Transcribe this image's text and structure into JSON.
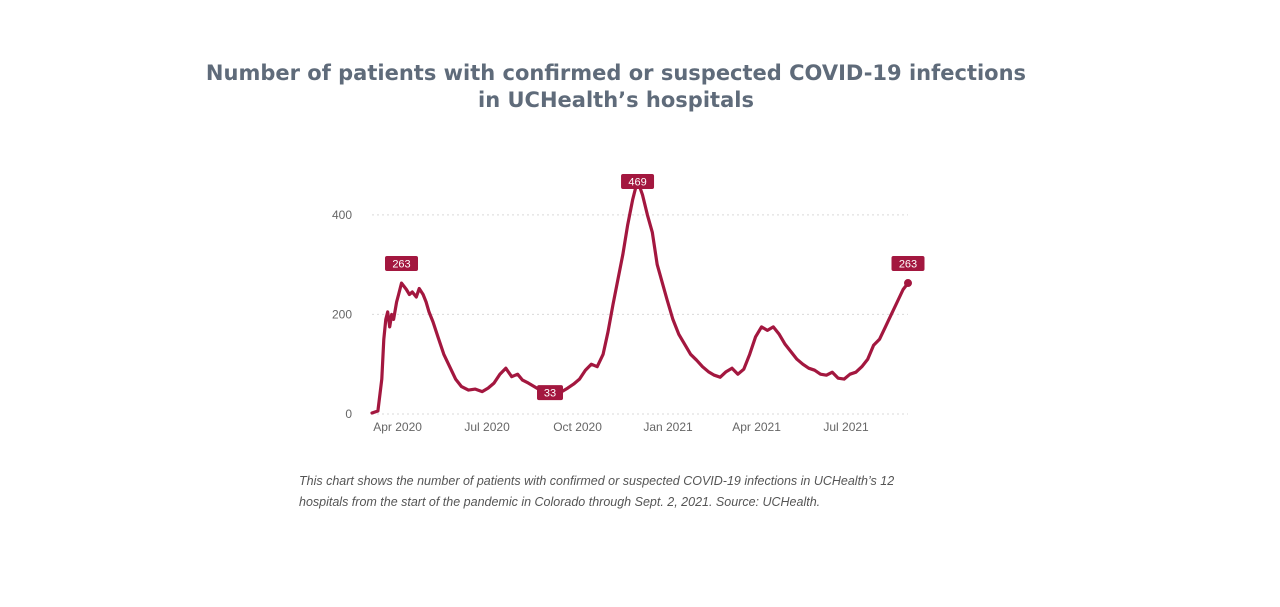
{
  "page": {
    "title": "Number of patients with confirmed or suspected COVID-19 infections in UCHealth’s hospitals",
    "caption": "This chart shows the number of patients with confirmed or suspected COVID-19 infections in UCHealth’s 12 hospitals from the start of the pandemic in Colorado through Sept. 2, 2021. Source: UCHealth."
  },
  "chart_data": {
    "type": "line",
    "title": "Number of patients with confirmed or suspected COVID-19 infections in UCHealth’s hospitals",
    "xlabel": "",
    "ylabel": "",
    "x_axis": {
      "range": [
        "2020-03-06",
        "2021-09-02"
      ],
      "ticks": [
        {
          "date": "2020-04-01",
          "label": "Apr 2020"
        },
        {
          "date": "2020-07-01",
          "label": "Jul 2020"
        },
        {
          "date": "2020-10-01",
          "label": "Oct 2020"
        },
        {
          "date": "2021-01-01",
          "label": "Jan 2021"
        },
        {
          "date": "2021-04-01",
          "label": "Apr 2021"
        },
        {
          "date": "2021-07-01",
          "label": "Jul 2021"
        }
      ]
    },
    "y_axis": {
      "range": [
        0,
        470
      ],
      "ticks": [
        0,
        200,
        400
      ]
    },
    "grid": "horizontal dotted",
    "line_color": "#a3173f",
    "series": [
      {
        "x": [
          "2020-03-06",
          "2020-03-12",
          "2020-03-16",
          "2020-03-18",
          "2020-03-20",
          "2020-03-22",
          "2020-03-24",
          "2020-03-26",
          "2020-03-28",
          "2020-03-31",
          "2020-04-02",
          "2020-04-05",
          "2020-04-08",
          "2020-04-10",
          "2020-04-13",
          "2020-04-16",
          "2020-04-20",
          "2020-04-23",
          "2020-04-27",
          "2020-04-30",
          "2020-05-03",
          "2020-05-07",
          "2020-05-12",
          "2020-05-18",
          "2020-05-24",
          "2020-05-30",
          "2020-06-05",
          "2020-06-12",
          "2020-06-19",
          "2020-06-26",
          "2020-07-02",
          "2020-07-08",
          "2020-07-14",
          "2020-07-20",
          "2020-07-26",
          "2020-08-01",
          "2020-08-06",
          "2020-08-12",
          "2020-08-18",
          "2020-08-24",
          "2020-08-29",
          "2020-09-03",
          "2020-09-09",
          "2020-09-15",
          "2020-09-21",
          "2020-09-27",
          "2020-10-03",
          "2020-10-09",
          "2020-10-15",
          "2020-10-21",
          "2020-10-27",
          "2020-11-01",
          "2020-11-06",
          "2020-11-11",
          "2020-11-16",
          "2020-11-21",
          "2020-11-26",
          "2020-12-01",
          "2020-12-06",
          "2020-12-11",
          "2020-12-16",
          "2020-12-21",
          "2020-12-26",
          "2020-12-31",
          "2021-01-06",
          "2021-01-12",
          "2021-01-18",
          "2021-01-24",
          "2021-01-30",
          "2021-02-05",
          "2021-02-11",
          "2021-02-17",
          "2021-02-23",
          "2021-03-01",
          "2021-03-07",
          "2021-03-13",
          "2021-03-19",
          "2021-03-25",
          "2021-03-31",
          "2021-04-06",
          "2021-04-12",
          "2021-04-18",
          "2021-04-24",
          "2021-04-30",
          "2021-05-06",
          "2021-05-12",
          "2021-05-18",
          "2021-05-24",
          "2021-05-30",
          "2021-06-05",
          "2021-06-11",
          "2021-06-17",
          "2021-06-23",
          "2021-06-29",
          "2021-07-05",
          "2021-07-11",
          "2021-07-17",
          "2021-07-23",
          "2021-07-29",
          "2021-08-04",
          "2021-08-10",
          "2021-08-16",
          "2021-08-22",
          "2021-08-28",
          "2021-09-02"
        ],
        "y": [
          2,
          6,
          70,
          150,
          190,
          205,
          175,
          200,
          190,
          225,
          240,
          263,
          255,
          250,
          240,
          245,
          235,
          252,
          240,
          225,
          205,
          185,
          155,
          120,
          95,
          70,
          55,
          48,
          50,
          45,
          52,
          62,
          80,
          92,
          75,
          80,
          68,
          62,
          55,
          48,
          40,
          33,
          42,
          45,
          52,
          60,
          70,
          88,
          100,
          95,
          120,
          165,
          220,
          270,
          320,
          380,
          430,
          469,
          440,
          400,
          365,
          300,
          265,
          230,
          190,
          160,
          140,
          120,
          108,
          95,
          85,
          78,
          74,
          85,
          92,
          80,
          90,
          120,
          155,
          175,
          168,
          175,
          160,
          140,
          125,
          110,
          100,
          92,
          88,
          80,
          78,
          84,
          72,
          70,
          80,
          84,
          95,
          110,
          138,
          150,
          175,
          200,
          225,
          250,
          263
        ]
      }
    ],
    "annotations": [
      {
        "date": "2020-04-05",
        "value": 263,
        "label": "263"
      },
      {
        "date": "2020-09-03",
        "value": 33,
        "label": "33"
      },
      {
        "date": "2020-12-01",
        "value": 469,
        "label": "469"
      },
      {
        "date": "2021-09-02",
        "value": 263,
        "label": "263"
      }
    ]
  }
}
